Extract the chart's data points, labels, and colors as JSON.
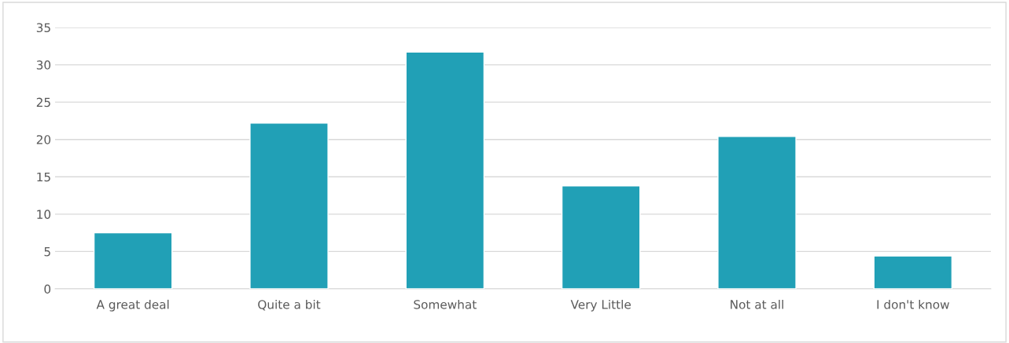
{
  "chart_data": {
    "type": "bar",
    "categories": [
      "A great deal",
      "Quite a bit",
      "Somewhat",
      "Very Little",
      "Not at all",
      "I don't know"
    ],
    "values": [
      7.5,
      22.2,
      31.7,
      13.8,
      20.4,
      4.4
    ],
    "color": "#21a0b6",
    "ylim": [
      0,
      35
    ],
    "yticks": [
      0,
      5,
      10,
      15,
      20,
      25,
      30,
      35
    ],
    "grid": "y"
  }
}
